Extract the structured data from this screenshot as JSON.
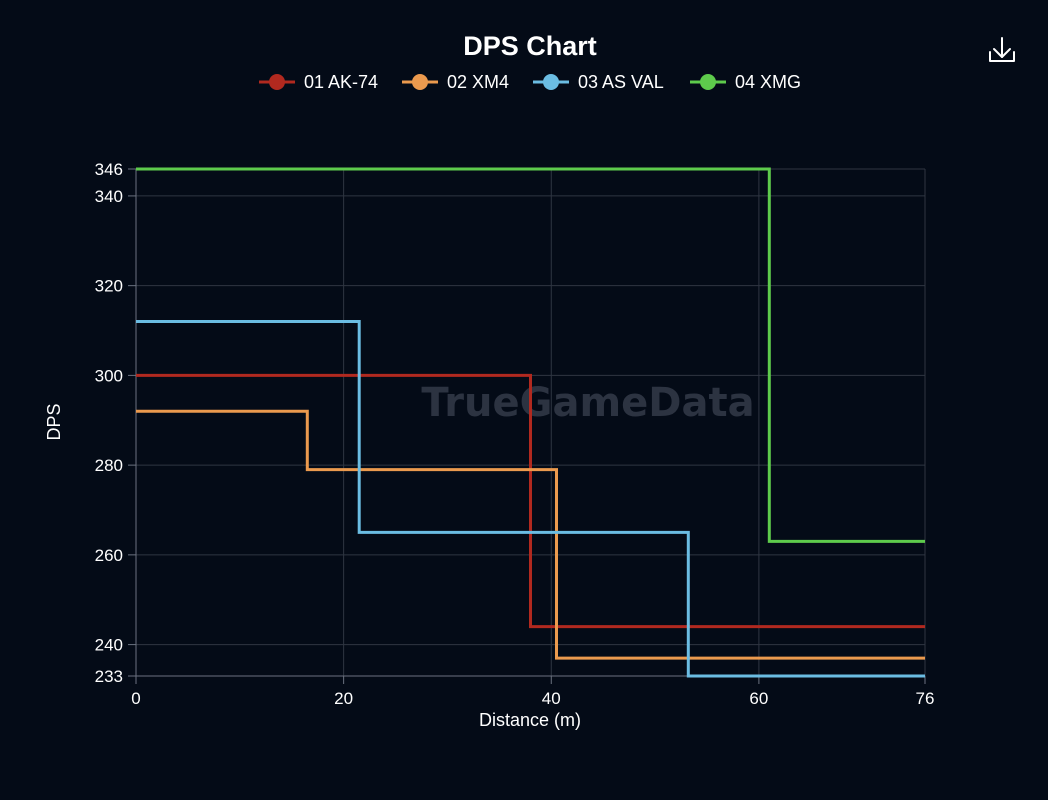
{
  "chart_data": {
    "type": "line",
    "step": true,
    "title": "DPS Chart",
    "xlabel": "Distance (m)",
    "ylabel": "DPS",
    "xlim": [
      0,
      76
    ],
    "ylim": [
      233,
      346
    ],
    "x_ticks": [
      0,
      20,
      40,
      60,
      76
    ],
    "y_ticks": [
      233,
      240,
      260,
      280,
      300,
      320,
      340,
      346
    ],
    "grid": true,
    "legend_position": "top-center",
    "watermark": "TrueGameData",
    "series": [
      {
        "name": "01 AK-74",
        "color": "#b1291f",
        "points": [
          [
            0,
            300
          ],
          [
            38,
            300
          ],
          [
            38,
            244
          ],
          [
            76,
            244
          ]
        ]
      },
      {
        "name": "02 XM4",
        "color": "#eb9a4e",
        "points": [
          [
            0,
            292
          ],
          [
            16.5,
            292
          ],
          [
            16.5,
            279
          ],
          [
            40.5,
            279
          ],
          [
            40.5,
            237
          ],
          [
            76,
            237
          ]
        ]
      },
      {
        "name": "03 AS VAL",
        "color": "#6bbde3",
        "points": [
          [
            0,
            312
          ],
          [
            21.5,
            312
          ],
          [
            21.5,
            265
          ],
          [
            53.2,
            265
          ],
          [
            53.2,
            233
          ],
          [
            76,
            233
          ]
        ]
      },
      {
        "name": "04 XMG",
        "color": "#5ecb4c",
        "points": [
          [
            0,
            346
          ],
          [
            61,
            346
          ],
          [
            61,
            263
          ],
          [
            76,
            263
          ]
        ]
      }
    ]
  },
  "toolbar": {
    "download_icon": "download-icon"
  },
  "colors": {
    "background": "#040b17",
    "grid": "#2f3642",
    "axis": "#6b7280"
  }
}
